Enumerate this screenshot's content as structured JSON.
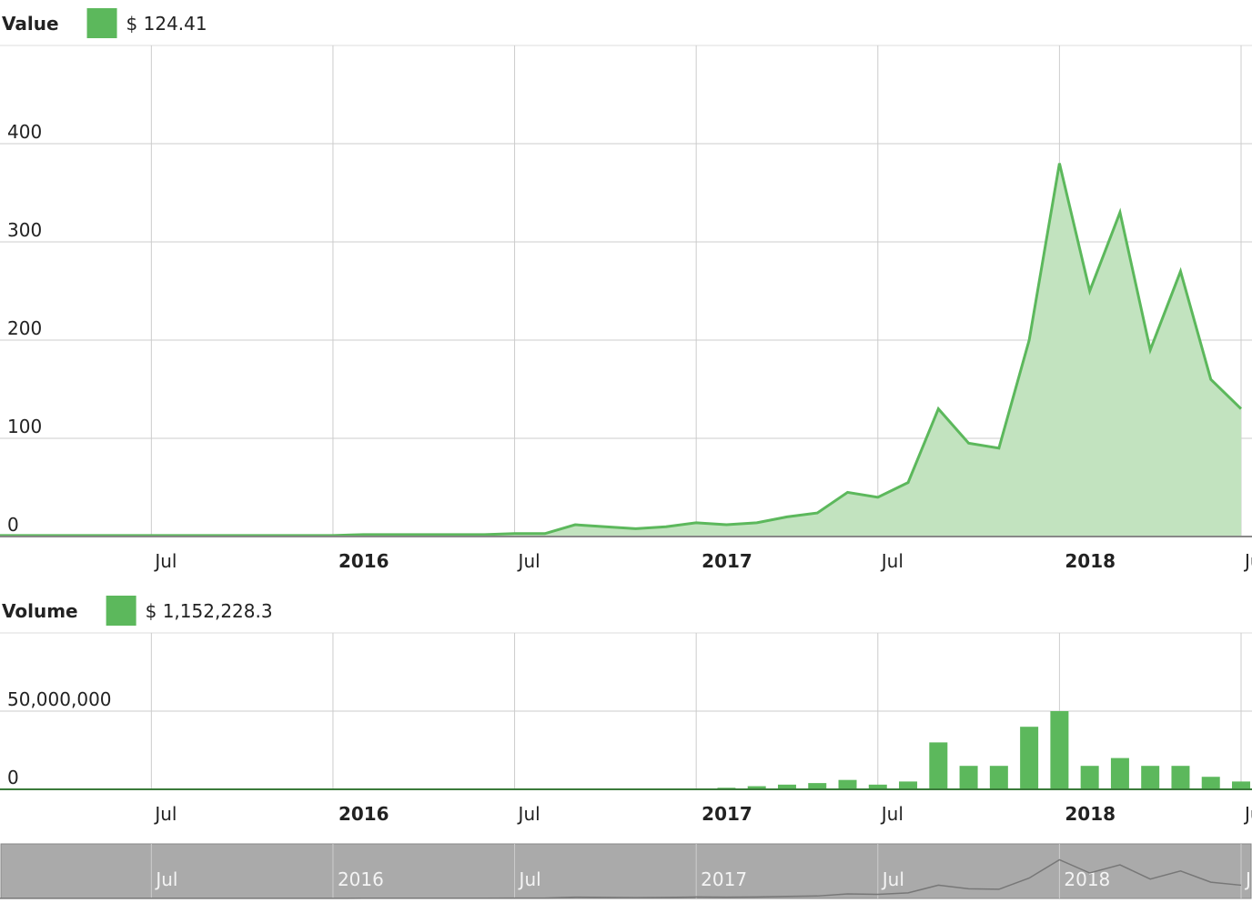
{
  "chart_data": [
    {
      "type": "area",
      "title": "Value",
      "current_value_label": "$ 124.41",
      "color": "#5cb85c",
      "fill": "#c2e3bf",
      "x": [
        "2015-02",
        "2015-03",
        "2015-04",
        "2015-05",
        "2015-06",
        "2015-07",
        "2015-08",
        "2015-09",
        "2015-10",
        "2015-11",
        "2015-12",
        "2016-01",
        "2016-02",
        "2016-03",
        "2016-04",
        "2016-05",
        "2016-06",
        "2016-07",
        "2016-08",
        "2016-09",
        "2016-10",
        "2016-11",
        "2016-12",
        "2017-01",
        "2017-02",
        "2017-03",
        "2017-04",
        "2017-05",
        "2017-06",
        "2017-07",
        "2017-08",
        "2017-09",
        "2017-10",
        "2017-11",
        "2017-12",
        "2018-01",
        "2018-02",
        "2018-03",
        "2018-04",
        "2018-05",
        "2018-06",
        "2018-07"
      ],
      "series": [
        {
          "color": "#5cb85c",
          "values": [
            1,
            1,
            1,
            1,
            1,
            1,
            1,
            1,
            1,
            1,
            1,
            1,
            2,
            2,
            2,
            2,
            2,
            3,
            3,
            12,
            10,
            8,
            10,
            14,
            12,
            14,
            20,
            24,
            45,
            40,
            55,
            130,
            95,
            90,
            200,
            380,
            250,
            330,
            190,
            270,
            160,
            130
          ]
        }
      ],
      "xlim": [
        "2015-02",
        "2018-07"
      ],
      "xticks": [
        {
          "value": "2015-07",
          "label": "Jul"
        },
        {
          "value": "2016-01",
          "label": "2016"
        },
        {
          "value": "2016-07",
          "label": "Jul"
        },
        {
          "value": "2017-01",
          "label": "2017"
        },
        {
          "value": "2017-07",
          "label": "Jul"
        },
        {
          "value": "2018-01",
          "label": "2018"
        },
        {
          "value": "2018-07",
          "label": "Jul"
        }
      ],
      "ylim": [
        0,
        500
      ],
      "yticks": [
        0,
        100,
        200,
        300,
        400
      ],
      "grid": true
    },
    {
      "type": "bar",
      "title": "Volume",
      "current_value_label": "$ 1,152,228.3",
      "color": "#5cb85c",
      "x": [
        "2015-02",
        "2015-03",
        "2015-04",
        "2015-05",
        "2015-06",
        "2015-07",
        "2015-08",
        "2015-09",
        "2015-10",
        "2015-11",
        "2015-12",
        "2016-01",
        "2016-02",
        "2016-03",
        "2016-04",
        "2016-05",
        "2016-06",
        "2016-07",
        "2016-08",
        "2016-09",
        "2016-10",
        "2016-11",
        "2016-12",
        "2017-01",
        "2017-02",
        "2017-03",
        "2017-04",
        "2017-05",
        "2017-06",
        "2017-07",
        "2017-08",
        "2017-09",
        "2017-10",
        "2017-11",
        "2017-12",
        "2018-01",
        "2018-02",
        "2018-03",
        "2018-04",
        "2018-05",
        "2018-06",
        "2018-07"
      ],
      "series": [
        {
          "color": "#5cb85c",
          "values": [
            0,
            0,
            0,
            0,
            0,
            0,
            0,
            0,
            0,
            0,
            0,
            0,
            0,
            0,
            0,
            0,
            0,
            0,
            0,
            100000,
            0,
            0,
            0,
            500000,
            1000000,
            2000000,
            3000000,
            4000000,
            6000000,
            3000000,
            5000000,
            30000000,
            15000000,
            15000000,
            40000000,
            50000000,
            15000000,
            20000000,
            15000000,
            15000000,
            8000000,
            5000000
          ]
        }
      ],
      "xlim": [
        "2015-02",
        "2018-07"
      ],
      "xticks": [
        {
          "value": "2015-07",
          "label": "Jul"
        },
        {
          "value": "2016-01",
          "label": "2016"
        },
        {
          "value": "2016-07",
          "label": "Jul"
        },
        {
          "value": "2017-01",
          "label": "2017"
        },
        {
          "value": "2017-07",
          "label": "Jul"
        },
        {
          "value": "2018-01",
          "label": "2018"
        },
        {
          "value": "2018-07",
          "label": "Jul"
        }
      ],
      "ylim": [
        0,
        100000000
      ],
      "yticks": [
        0,
        {
          "value": 50000000,
          "label": "50,000,000"
        }
      ],
      "grid": true
    }
  ]
}
